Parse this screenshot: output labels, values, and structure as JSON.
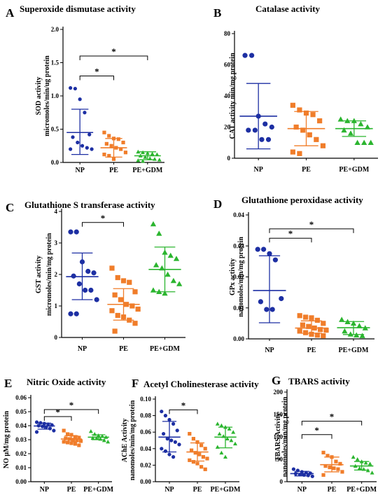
{
  "colors": {
    "NP": "#1d2fa3",
    "PE": "#f07d2a",
    "PE+GDM": "#2bb52f"
  },
  "chart_data": [
    {
      "type": "scatter",
      "panel": "A",
      "title": "Superoxide dismutase activity",
      "ylabel": [
        "SOD activity",
        "micromoles/min/ug protein"
      ],
      "categories": [
        "NP",
        "PE",
        "PE+GDM"
      ],
      "ylim": [
        0,
        2.0
      ],
      "yticks": [
        0.0,
        0.5,
        1.0,
        1.5,
        2.0
      ],
      "ytick_labels": [
        "0.0",
        "0.5",
        "1.0",
        "1.5",
        "2.0"
      ],
      "series": [
        {
          "values": [
            1.12,
            1.11,
            0.95,
            0.75,
            0.42,
            0.38,
            0.3,
            0.25,
            0.22,
            0.2,
            0.2
          ],
          "mean": 0.45,
          "sd_low": 0.12,
          "sd_high": 0.8
        },
        {
          "values": [
            0.45,
            0.4,
            0.36,
            0.35,
            0.3,
            0.28,
            0.25,
            0.22,
            0.2,
            0.15,
            0.12,
            0.1,
            0.05
          ],
          "mean": 0.22,
          "sd_low": 0.08,
          "sd_high": 0.36
        },
        {
          "values": [
            0.16,
            0.15,
            0.14,
            0.13,
            0.12,
            0.1,
            0.08,
            0.06,
            0.05,
            0.04,
            0.03,
            0.02
          ],
          "mean": 0.1,
          "sd_low": 0.04,
          "sd_high": 0.16
        }
      ],
      "brackets": [
        {
          "from": 0,
          "to": 1,
          "y": 1.3,
          "label": "*"
        },
        {
          "from": 0,
          "to": 2,
          "y": 1.6,
          "label": "*"
        }
      ]
    },
    {
      "type": "scatter",
      "panel": "B",
      "title": "Catalase activity",
      "ylabel": [
        "CAT activity min/mg protein"
      ],
      "categories": [
        "NP",
        "PE",
        "PE+GDM"
      ],
      "ylim": [
        0,
        80
      ],
      "yticks": [
        0,
        20,
        40,
        60,
        80
      ],
      "ytick_labels": [
        "0",
        "20",
        "40",
        "60",
        "80"
      ],
      "series": [
        {
          "values": [
            66,
            66,
            27,
            22,
            20,
            18,
            18,
            12,
            12
          ],
          "mean": 27,
          "sd_low": 6,
          "sd_high": 48
        },
        {
          "values": [
            34,
            31,
            29,
            28,
            24,
            20,
            18,
            15,
            12,
            8,
            4,
            3
          ],
          "mean": 19,
          "sd_low": 8,
          "sd_high": 30
        },
        {
          "values": [
            25,
            24,
            24,
            22,
            20,
            18,
            16,
            10,
            10,
            10
          ],
          "mean": 19,
          "sd_low": 14,
          "sd_high": 24
        }
      ],
      "brackets": []
    },
    {
      "type": "scatter",
      "panel": "C",
      "title": "Glutathione S transferase activity",
      "ylabel": [
        "GST activity",
        "micromoles/min/mg protein"
      ],
      "categories": [
        "NP",
        "PE",
        "PE+GDM"
      ],
      "ylim": [
        0,
        4
      ],
      "yticks": [
        0,
        1,
        2,
        3,
        4
      ],
      "ytick_labels": [
        "0",
        "1",
        "2",
        "3",
        "4"
      ],
      "series": [
        {
          "values": [
            3.35,
            3.35,
            2.4,
            2.1,
            2.05,
            1.95,
            1.7,
            1.5,
            1.5,
            1.2,
            0.75,
            0.75
          ],
          "mean": 1.93,
          "sd_low": 1.2,
          "sd_high": 2.68
        },
        {
          "values": [
            2.2,
            1.9,
            1.8,
            1.75,
            1.45,
            1.35,
            1.2,
            1.05,
            1.0,
            0.9,
            0.85,
            0.7,
            0.65,
            0.55,
            0.45,
            0.2
          ],
          "mean": 1.05,
          "sd_low": 0.55,
          "sd_high": 1.55
        },
        {
          "values": [
            3.6,
            3.3,
            2.7,
            2.6,
            2.5,
            2.3,
            2.2,
            2.0,
            1.8,
            1.7,
            1.5,
            1.45,
            1.4
          ],
          "mean": 2.16,
          "sd_low": 1.45,
          "sd_high": 2.87
        }
      ],
      "brackets": [
        {
          "from": 0,
          "to": 1,
          "y": 3.65,
          "label": "*"
        }
      ]
    },
    {
      "type": "scatter",
      "panel": "D",
      "title": "Glutathione peroxidase activity",
      "ylabel": [
        "GPx activity",
        "nanomoles/min/mg protein"
      ],
      "categories": [
        "NP",
        "PE",
        "PE+GDM"
      ],
      "ylim": [
        0,
        0.04
      ],
      "yticks": [
        0,
        0.01,
        0.02,
        0.03,
        0.04
      ],
      "ytick_labels": [
        "0.00",
        "0.01",
        "0.02",
        "0.03",
        "0.04"
      ],
      "series": [
        {
          "values": [
            0.0289,
            0.0289,
            0.0275,
            0.0255,
            0.013,
            0.012,
            0.0095,
            0.0095
          ],
          "mean": 0.0156,
          "sd_low": 0.0052,
          "sd_high": 0.0268
        },
        {
          "values": [
            0.0075,
            0.007,
            0.0068,
            0.006,
            0.005,
            0.0045,
            0.004,
            0.0035,
            0.003,
            0.0028,
            0.0025,
            0.002,
            0.0015,
            0.0012,
            0.001
          ],
          "mean": 0.0035,
          "sd_low": 0.0018,
          "sd_high": 0.0058
        },
        {
          "values": [
            0.0062,
            0.0055,
            0.005,
            0.0042,
            0.0035,
            0.0025,
            0.0015,
            0.0012,
            0.001
          ],
          "mean": 0.0036,
          "sd_low": 0.0014,
          "sd_high": 0.0056
        }
      ],
      "brackets": [
        {
          "from": 0,
          "to": 1,
          "y": 0.0325,
          "label": "*"
        },
        {
          "from": 0,
          "to": 2,
          "y": 0.0355,
          "label": "*"
        }
      ]
    },
    {
      "type": "scatter",
      "panel": "E",
      "title": "Nitric Oxide activity",
      "ylabel": [
        "NO μM/mg protein"
      ],
      "categories": [
        "NP",
        "PE",
        "PE+GDM"
      ],
      "ylim": [
        0,
        0.06
      ],
      "yticks": [
        0,
        0.01,
        0.02,
        0.03,
        0.04,
        0.05,
        0.06
      ],
      "ytick_labels": [
        "0.00",
        "0.01",
        "0.02",
        "0.03",
        "0.04",
        "0.05",
        "0.06"
      ],
      "series": [
        {
          "values": [
            0.0425,
            0.042,
            0.0415,
            0.041,
            0.0405,
            0.04,
            0.0395,
            0.039,
            0.038,
            0.0365,
            0.0355
          ],
          "mean": 0.0398,
          "sd_low": 0.0375,
          "sd_high": 0.0418
        },
        {
          "values": [
            0.0365,
            0.034,
            0.0335,
            0.032,
            0.0315,
            0.031,
            0.0305,
            0.03,
            0.0295,
            0.029,
            0.0285,
            0.028,
            0.0275,
            0.027,
            0.026
          ],
          "mean": 0.0305,
          "sd_low": 0.0285,
          "sd_high": 0.0328
        },
        {
          "values": [
            0.036,
            0.034,
            0.033,
            0.0325,
            0.0318,
            0.0312,
            0.031,
            0.0305,
            0.0295,
            0.0285
          ],
          "mean": 0.0318,
          "sd_low": 0.03,
          "sd_high": 0.0335
        }
      ],
      "brackets": [
        {
          "from": 0,
          "to": 1,
          "y": 0.0465,
          "label": "*"
        },
        {
          "from": 0,
          "to": 2,
          "y": 0.0515,
          "label": "*"
        }
      ]
    },
    {
      "type": "scatter",
      "panel": "F",
      "title": "Acetyl Cholinesterase activity",
      "ylabel": [
        "AChE Activity",
        "nanomoles/min/mg protein"
      ],
      "categories": [
        "NP",
        "PE",
        "PE+GDM"
      ],
      "ylim": [
        0,
        0.1
      ],
      "yticks": [
        0,
        0.02,
        0.04,
        0.06,
        0.08,
        0.1
      ],
      "ytick_labels": [
        "0.00",
        "0.02",
        "0.04",
        "0.06",
        "0.08",
        "0.10"
      ],
      "series": [
        {
          "values": [
            0.085,
            0.08,
            0.075,
            0.07,
            0.062,
            0.058,
            0.052,
            0.05,
            0.048,
            0.045,
            0.04,
            0.037,
            0.033,
            0.03
          ],
          "mean": 0.054,
          "sd_low": 0.036,
          "sd_high": 0.073
        },
        {
          "values": [
            0.058,
            0.052,
            0.048,
            0.044,
            0.04,
            0.038,
            0.035,
            0.033,
            0.03,
            0.028,
            0.026,
            0.024,
            0.022,
            0.018,
            0.015
          ],
          "mean": 0.036,
          "sd_low": 0.025,
          "sd_high": 0.047
        },
        {
          "values": [
            0.07,
            0.068,
            0.066,
            0.064,
            0.06,
            0.058,
            0.055,
            0.052,
            0.05,
            0.046,
            0.042,
            0.035,
            0.03
          ],
          "mean": 0.054,
          "sd_low": 0.041,
          "sd_high": 0.066
        }
      ],
      "brackets": [
        {
          "from": 0,
          "to": 1,
          "y": 0.087,
          "label": "*"
        }
      ]
    },
    {
      "type": "scatter",
      "panel": "G",
      "title": "TBARS activity",
      "ylabel": [
        "TBARS Activity",
        "nanomoles/min/mg protein"
      ],
      "categories": [
        "NP",
        "PE",
        "PE+GDM"
      ],
      "ylim": [
        0,
        200
      ],
      "yticks": [
        0,
        50,
        100,
        150,
        200
      ],
      "ytick_labels": [
        "0",
        "50",
        "100",
        "150",
        "200"
      ],
      "series": [
        {
          "values": [
            28,
            25,
            22,
            20,
            19,
            18,
            16,
            15,
            14,
            12
          ],
          "mean": 18,
          "sd_low": 13,
          "sd_high": 23
        },
        {
          "values": [
            65,
            58,
            55,
            45,
            40,
            35,
            32,
            30,
            28,
            22,
            15
          ],
          "mean": 38,
          "sd_low": 22,
          "sd_high": 55
        },
        {
          "values": [
            55,
            50,
            45,
            42,
            40,
            35,
            30,
            28,
            25,
            20
          ],
          "mean": 35,
          "sd_low": 26,
          "sd_high": 45
        }
      ],
      "brackets": [
        {
          "from": 0,
          "to": 1,
          "y": 105,
          "label": "*"
        },
        {
          "from": 0,
          "to": 2,
          "y": 135,
          "label": "*"
        }
      ]
    }
  ]
}
